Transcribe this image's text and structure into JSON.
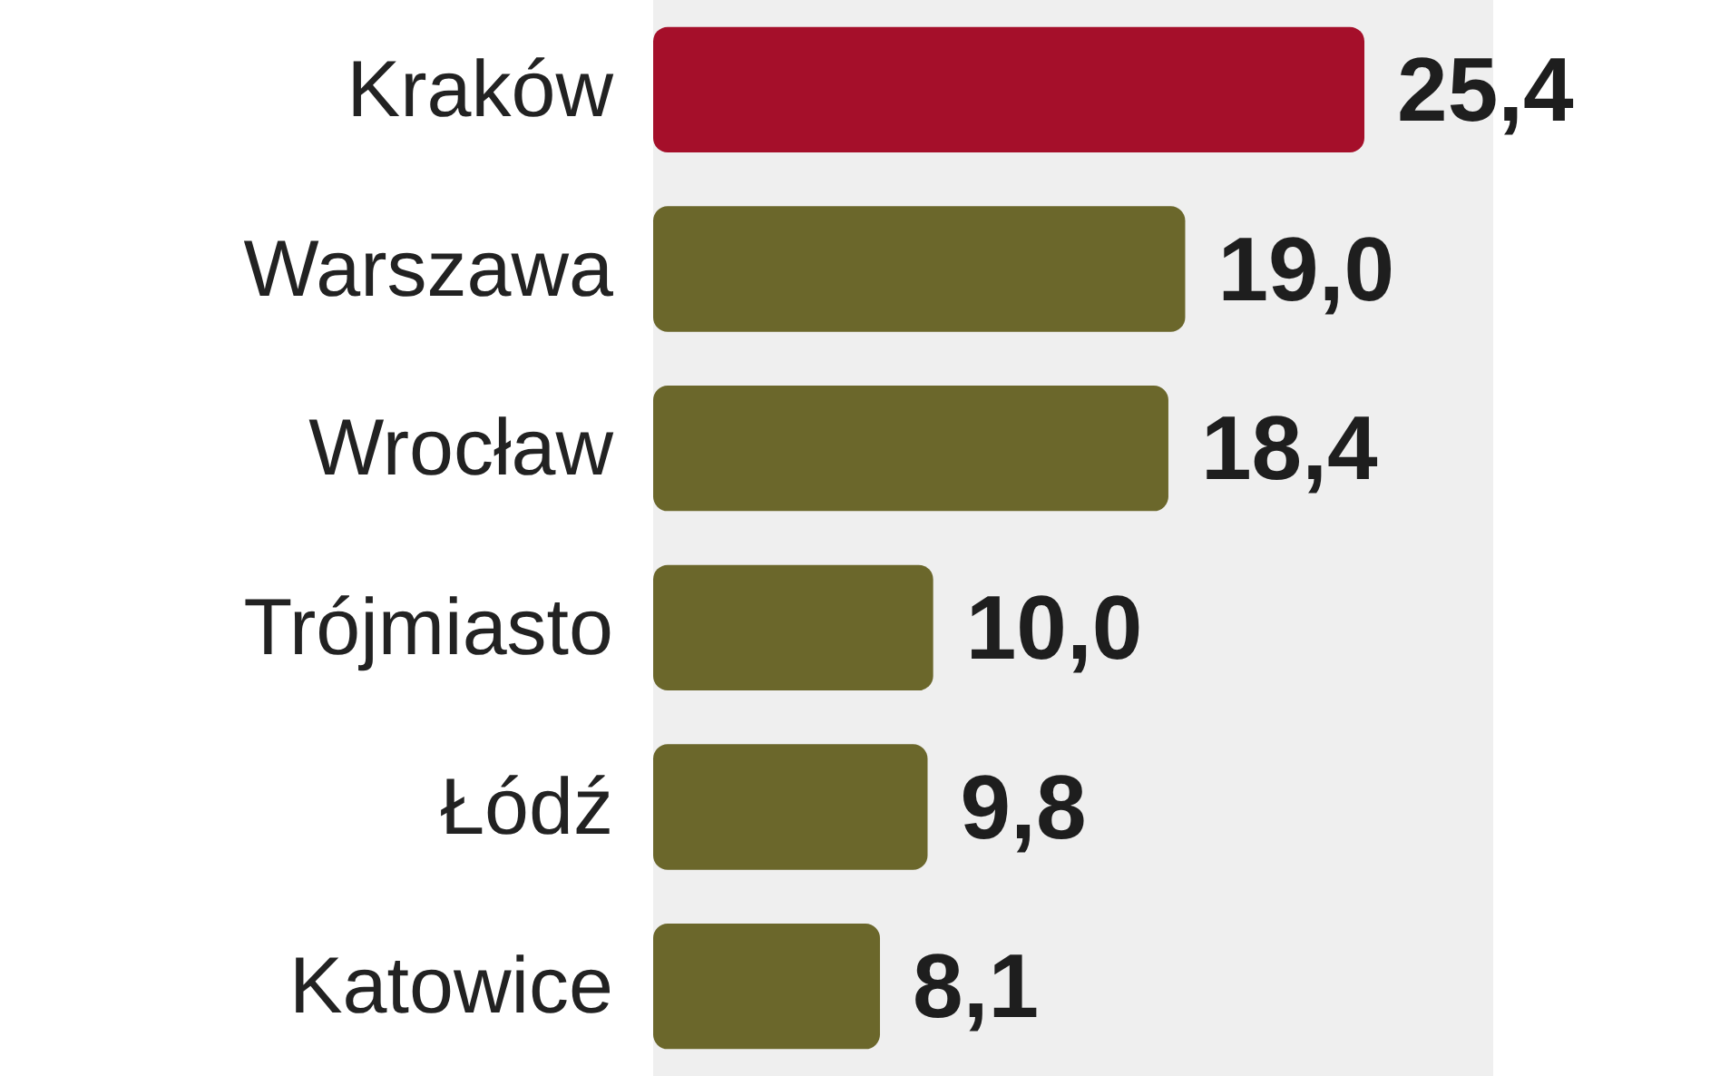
{
  "chart_data": {
    "type": "bar",
    "orientation": "horizontal",
    "categories": [
      "Kraków",
      "Warszawa",
      "Wrocław",
      "Trójmiasto",
      "Łódź",
      "Katowice"
    ],
    "values": [
      25.4,
      19.0,
      18.4,
      10.0,
      9.8,
      8.1
    ],
    "colors": [
      "#a50f2a",
      "#6b672b",
      "#6b672b",
      "#6b672b",
      "#6b672b",
      "#6b672b"
    ],
    "value_labels": [
      "25,4",
      "19,0",
      "18,4",
      "10,0",
      "9,8",
      "8,1"
    ],
    "tick_labels": "y"
  }
}
